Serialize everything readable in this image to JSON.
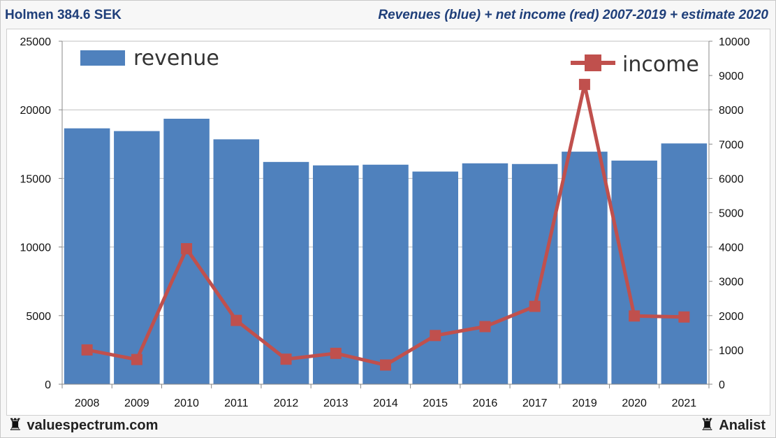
{
  "header": {
    "title_left": "Holmen 384.6 SEK",
    "title_right": "Revenues (blue) + net income (red) 2007-2019 + estimate 2020"
  },
  "footer": {
    "brand_left": "valuespectrum.com",
    "brand_right": "Analist",
    "logo_icon": "chess-rook-icon"
  },
  "colors": {
    "revenue": "#4f81bd",
    "income": "#c0504d",
    "header_text": "#1f3f7a"
  },
  "chart_data": {
    "type": "bar",
    "categories": [
      "2008",
      "2009",
      "2010",
      "2011",
      "2012",
      "2013",
      "2014",
      "2015",
      "2016",
      "2017",
      "2019",
      "2020",
      "2021"
    ],
    "series": [
      {
        "name": "revenue",
        "type": "bar",
        "axis": "left",
        "values": [
          18650,
          18450,
          19350,
          17850,
          16200,
          15950,
          16000,
          15500,
          16100,
          16050,
          16950,
          16300,
          17550
        ]
      },
      {
        "name": "income",
        "type": "line",
        "axis": "right",
        "values": [
          1000,
          720,
          3950,
          1860,
          730,
          900,
          560,
          1420,
          1680,
          2270,
          8740,
          1990,
          1960
        ]
      }
    ],
    "y_left": {
      "min": 0,
      "max": 25000,
      "ticks": [
        "0",
        "5000",
        "10000",
        "15000",
        "20000",
        "25000"
      ]
    },
    "y_right": {
      "min": 0,
      "max": 10000,
      "ticks": [
        "0",
        "1000",
        "2000",
        "3000",
        "4000",
        "5000",
        "6000",
        "7000",
        "8000",
        "9000",
        "10000"
      ]
    },
    "grid": true,
    "legend": [
      {
        "label": "revenue",
        "placement": "top-left"
      },
      {
        "label": "income",
        "placement": "top-right"
      }
    ]
  }
}
